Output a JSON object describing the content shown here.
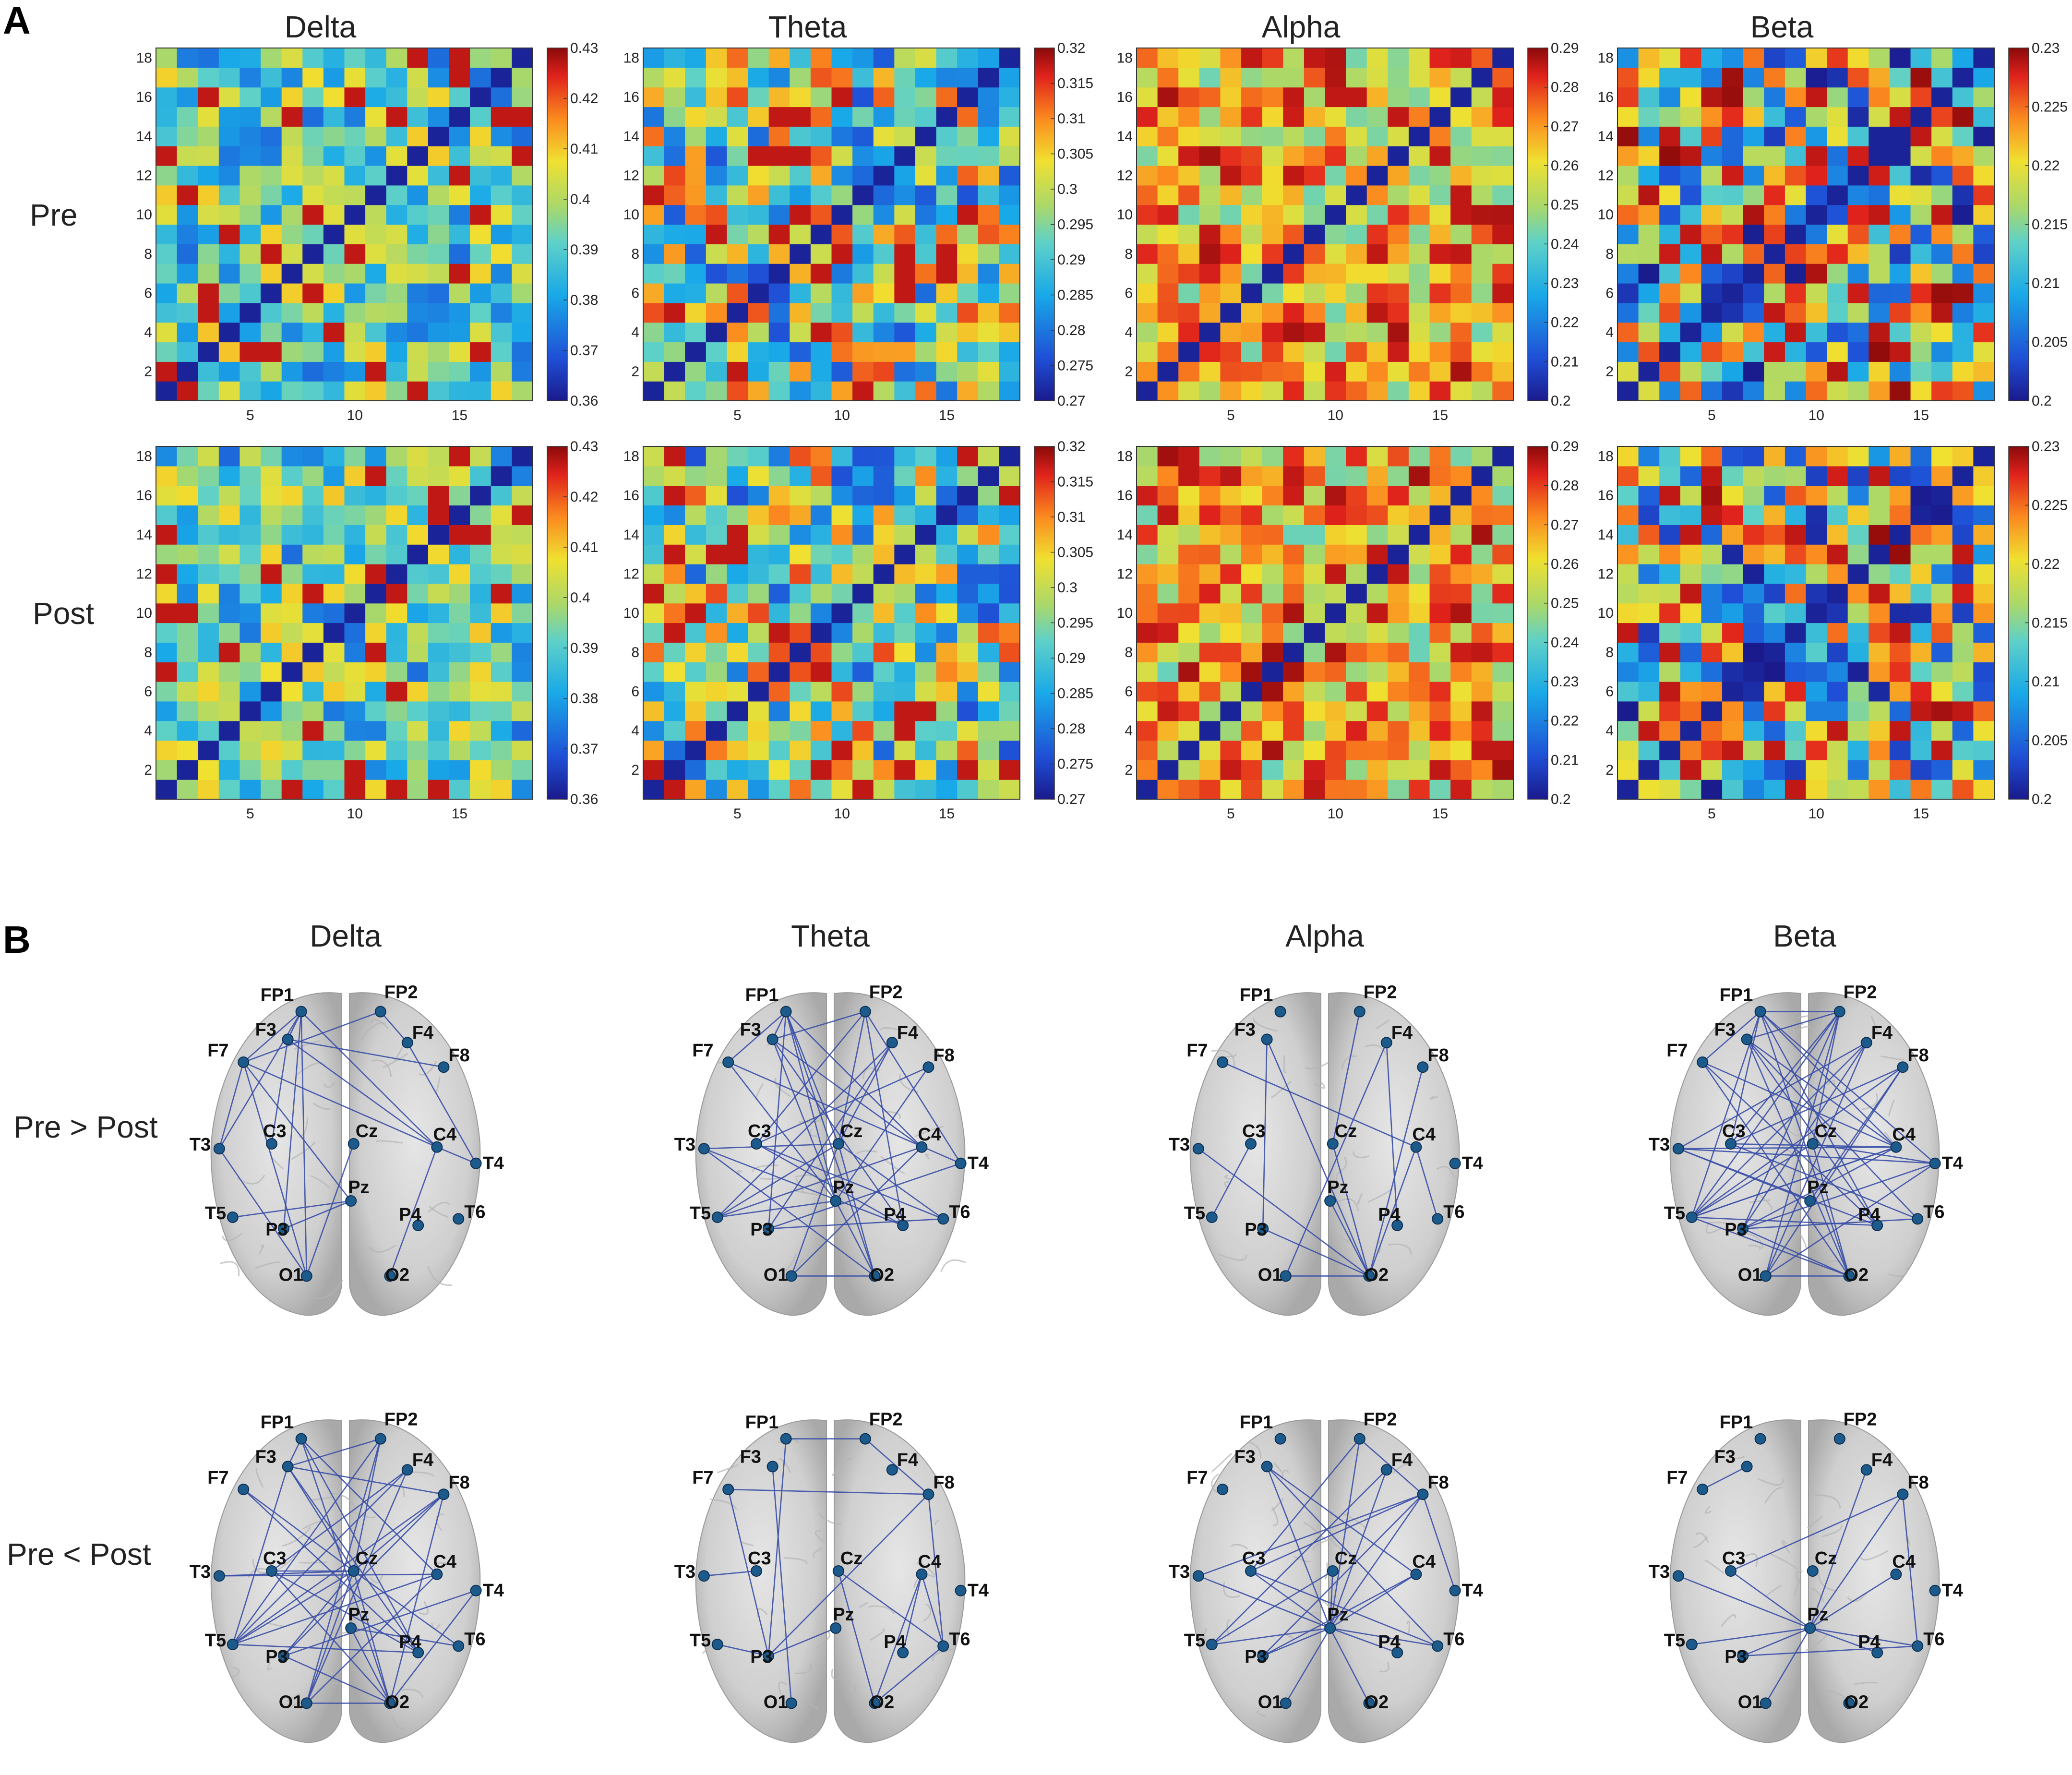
{
  "panel_a_label": "A",
  "panel_b_label": "B",
  "bands": [
    "Delta",
    "Theta",
    "Alpha",
    "Beta"
  ],
  "rows_a": [
    "Pre",
    "Post"
  ],
  "rows_b": [
    "Pre > Post",
    "Pre < Post"
  ],
  "matrix_size": 18,
  "y_ticks": [
    "2",
    "4",
    "6",
    "8",
    "10",
    "12",
    "14",
    "16",
    "18"
  ],
  "x_ticks": [
    "5",
    "10",
    "15"
  ],
  "colorbars": [
    {
      "band": "Delta",
      "ticks": [
        "0.43",
        "0.42",
        "0.41",
        "0.4",
        "0.39",
        "0.38",
        "0.37",
        "0.36"
      ]
    },
    {
      "band": "Theta",
      "ticks": [
        "0.32",
        "0.315",
        "0.31",
        "0.305",
        "0.3",
        "0.295",
        "0.29",
        "0.285",
        "0.28",
        "0.275",
        "0.27"
      ]
    },
    {
      "band": "Alpha",
      "ticks": [
        "0.29",
        "0.28",
        "0.27",
        "0.26",
        "0.25",
        "0.24",
        "0.23",
        "0.22",
        "0.21",
        "0.2"
      ]
    },
    {
      "band": "Beta",
      "ticks": [
        "0.23",
        "0.225",
        "0.22",
        "0.215",
        "0.21",
        "0.205",
        "0.2"
      ]
    }
  ],
  "colormap": "jet",
  "colors": {
    "edge": "#3a4fa8",
    "node": "#1d5a8c",
    "brain": "#c9c9c9"
  },
  "electrodes": [
    "FP1",
    "FP2",
    "F3",
    "F4",
    "F7",
    "F8",
    "T3",
    "C3",
    "Cz",
    "C4",
    "T4",
    "T5",
    "P3",
    "Pz",
    "P4",
    "T6",
    "O1",
    "O2"
  ],
  "chart_data": [
    {
      "type": "heatmap",
      "band": "Delta",
      "condition": "Pre",
      "diagonal_value": 0.36,
      "range": [
        0.36,
        0.43
      ],
      "size": 18
    },
    {
      "type": "heatmap",
      "band": "Theta",
      "condition": "Pre",
      "diagonal_value": 0.27,
      "range": [
        0.27,
        0.32
      ],
      "size": 18
    },
    {
      "type": "heatmap",
      "band": "Alpha",
      "condition": "Pre",
      "diagonal_value": 0.2,
      "range": [
        0.2,
        0.295
      ],
      "size": 18
    },
    {
      "type": "heatmap",
      "band": "Beta",
      "condition": "Pre",
      "diagonal_value": 0.2,
      "range": [
        0.2,
        0.23
      ],
      "size": 18
    },
    {
      "type": "heatmap",
      "band": "Delta",
      "condition": "Post",
      "diagonal_value": 0.36,
      "range": [
        0.36,
        0.43
      ],
      "size": 18
    },
    {
      "type": "heatmap",
      "band": "Theta",
      "condition": "Post",
      "diagonal_value": 0.27,
      "range": [
        0.27,
        0.32
      ],
      "size": 18
    },
    {
      "type": "heatmap",
      "band": "Alpha",
      "condition": "Post",
      "diagonal_value": 0.2,
      "range": [
        0.2,
        0.295
      ],
      "size": 18
    },
    {
      "type": "heatmap",
      "band": "Beta",
      "condition": "Post",
      "diagonal_value": 0.2,
      "range": [
        0.2,
        0.23
      ],
      "size": 18
    }
  ],
  "networks": [
    {
      "band": "Delta",
      "row": "Pre > Post",
      "edges": [
        [
          "FP1",
          "F7"
        ],
        [
          "FP1",
          "T3"
        ],
        [
          "FP1",
          "P3"
        ],
        [
          "FP1",
          "C4"
        ],
        [
          "FP1",
          "F3"
        ],
        [
          "FP2",
          "F4"
        ],
        [
          "FP2",
          "F7"
        ],
        [
          "F3",
          "C4"
        ],
        [
          "F7",
          "C4"
        ],
        [
          "F7",
          "Pz"
        ],
        [
          "F7",
          "T3"
        ],
        [
          "F3",
          "F8"
        ],
        [
          "T3",
          "O1"
        ],
        [
          "C3",
          "F3"
        ],
        [
          "Cz",
          "O1"
        ],
        [
          "C4",
          "T4"
        ],
        [
          "C4",
          "O2"
        ],
        [
          "Pz",
          "P3"
        ],
        [
          "Pz",
          "T5"
        ],
        [
          "F4",
          "T4"
        ],
        [
          "FP1",
          "O1"
        ],
        [
          "F7",
          "O1"
        ]
      ]
    },
    {
      "band": "Theta",
      "row": "Pre > Post",
      "edges": [
        [
          "FP1",
          "F3"
        ],
        [
          "FP1",
          "F7"
        ],
        [
          "FP1",
          "Cz"
        ],
        [
          "FP1",
          "C4"
        ],
        [
          "FP1",
          "Pz"
        ],
        [
          "FP1",
          "P3"
        ],
        [
          "FP2",
          "F3"
        ],
        [
          "FP2",
          "Cz"
        ],
        [
          "FP2",
          "C3"
        ],
        [
          "FP2",
          "P4"
        ],
        [
          "FP2",
          "T4"
        ],
        [
          "F3",
          "Pz"
        ],
        [
          "F3",
          "C4"
        ],
        [
          "F4",
          "P3"
        ],
        [
          "F4",
          "Cz"
        ],
        [
          "F7",
          "Pz"
        ],
        [
          "F7",
          "T4"
        ],
        [
          "F8",
          "Pz"
        ],
        [
          "F8",
          "C3"
        ],
        [
          "T3",
          "Cz"
        ],
        [
          "T3",
          "P4"
        ],
        [
          "T3",
          "O2"
        ],
        [
          "C3",
          "T6"
        ],
        [
          "C3",
          "P4"
        ],
        [
          "Cz",
          "T5"
        ],
        [
          "Cz",
          "O1"
        ],
        [
          "Cz",
          "O2"
        ],
        [
          "Cz",
          "T6"
        ],
        [
          "C4",
          "T5"
        ],
        [
          "C4",
          "O1"
        ],
        [
          "T4",
          "P3"
        ],
        [
          "T5",
          "Pz"
        ],
        [
          "Pz",
          "O2"
        ],
        [
          "P3",
          "T6"
        ],
        [
          "O1",
          "O2"
        ],
        [
          "F3",
          "P4"
        ],
        [
          "F4",
          "T5"
        ],
        [
          "FP1",
          "O2"
        ]
      ]
    },
    {
      "band": "Alpha",
      "row": "Pre > Post",
      "edges": [
        [
          "F3",
          "P3"
        ],
        [
          "F3",
          "O2"
        ],
        [
          "F7",
          "C4"
        ],
        [
          "FP2",
          "Cz"
        ],
        [
          "F4",
          "O1"
        ],
        [
          "F4",
          "P4"
        ],
        [
          "C3",
          "T5"
        ],
        [
          "T3",
          "O2"
        ],
        [
          "Cz",
          "O2"
        ],
        [
          "C4",
          "O2"
        ],
        [
          "C4",
          "T6"
        ],
        [
          "Pz",
          "O2"
        ],
        [
          "O1",
          "O2"
        ],
        [
          "P3",
          "O2"
        ],
        [
          "F8",
          "O2"
        ]
      ]
    },
    {
      "band": "Beta",
      "row": "Pre > Post",
      "edges": [
        [
          "FP1",
          "FP2"
        ],
        [
          "FP1",
          "F7"
        ],
        [
          "FP1",
          "C3"
        ],
        [
          "FP1",
          "T5"
        ],
        [
          "FP1",
          "P4"
        ],
        [
          "FP1",
          "C4"
        ],
        [
          "FP1",
          "T4"
        ],
        [
          "FP1",
          "O2"
        ],
        [
          "FP2",
          "F3"
        ],
        [
          "FP2",
          "C3"
        ],
        [
          "FP2",
          "T5"
        ],
        [
          "FP2",
          "P3"
        ],
        [
          "FP2",
          "Cz"
        ],
        [
          "FP2",
          "O1"
        ],
        [
          "F3",
          "P4"
        ],
        [
          "F3",
          "T6"
        ],
        [
          "F3",
          "C4"
        ],
        [
          "F3",
          "O2"
        ],
        [
          "F4",
          "T3"
        ],
        [
          "F4",
          "P3"
        ],
        [
          "F4",
          "T5"
        ],
        [
          "F4",
          "O1"
        ],
        [
          "F7",
          "P4"
        ],
        [
          "F7",
          "C4"
        ],
        [
          "F7",
          "O2"
        ],
        [
          "F8",
          "T5"
        ],
        [
          "F8",
          "C3"
        ],
        [
          "F8",
          "O1"
        ],
        [
          "T3",
          "C4"
        ],
        [
          "T3",
          "T4"
        ],
        [
          "T3",
          "P4"
        ],
        [
          "C3",
          "T6"
        ],
        [
          "C3",
          "C4"
        ],
        [
          "Cz",
          "T5"
        ],
        [
          "Cz",
          "O2"
        ],
        [
          "Cz",
          "T4"
        ],
        [
          "C4",
          "P3"
        ],
        [
          "C4",
          "T5"
        ],
        [
          "T4",
          "P3"
        ],
        [
          "T5",
          "P4"
        ],
        [
          "T5",
          "O2"
        ],
        [
          "P3",
          "O2"
        ],
        [
          "Pz",
          "T3"
        ],
        [
          "Pz",
          "F8"
        ],
        [
          "O1",
          "O2"
        ],
        [
          "O1",
          "T4"
        ],
        [
          "P3",
          "T6"
        ],
        [
          "T5",
          "C4"
        ]
      ]
    },
    {
      "band": "Delta",
      "row": "Pre < Post",
      "edges": [
        [
          "FP1",
          "F3"
        ],
        [
          "FP1",
          "C4"
        ],
        [
          "FP1",
          "O2"
        ],
        [
          "FP1",
          "P4"
        ],
        [
          "FP2",
          "F3"
        ],
        [
          "FP2",
          "Cz"
        ],
        [
          "FP2",
          "T5"
        ],
        [
          "FP2",
          "O1"
        ],
        [
          "F3",
          "Cz"
        ],
        [
          "F3",
          "P4"
        ],
        [
          "F3",
          "F8"
        ],
        [
          "F4",
          "C3"
        ],
        [
          "F4",
          "T5"
        ],
        [
          "F4",
          "O1"
        ],
        [
          "F7",
          "Cz"
        ],
        [
          "F7",
          "P4"
        ],
        [
          "F8",
          "Cz"
        ],
        [
          "F8",
          "T5"
        ],
        [
          "F8",
          "P3"
        ],
        [
          "F8",
          "O2"
        ],
        [
          "T3",
          "C4"
        ],
        [
          "T3",
          "Cz"
        ],
        [
          "C3",
          "O2"
        ],
        [
          "C3",
          "P4"
        ],
        [
          "C3",
          "Cz"
        ],
        [
          "Cz",
          "T5"
        ],
        [
          "Cz",
          "O1"
        ],
        [
          "Cz",
          "O2"
        ],
        [
          "Cz",
          "T6"
        ],
        [
          "Cz",
          "P3"
        ],
        [
          "C4",
          "T5"
        ],
        [
          "C4",
          "O1"
        ],
        [
          "T4",
          "P3"
        ],
        [
          "T4",
          "O2"
        ],
        [
          "T5",
          "P4"
        ],
        [
          "Pz",
          "T6"
        ],
        [
          "Pz",
          "O2"
        ],
        [
          "O1",
          "O2"
        ],
        [
          "P3",
          "O2"
        ],
        [
          "F3",
          "T5"
        ]
      ]
    },
    {
      "band": "Theta",
      "row": "Pre < Post",
      "edges": [
        [
          "FP1",
          "FP2"
        ],
        [
          "FP1",
          "P3"
        ],
        [
          "FP2",
          "F8"
        ],
        [
          "F7",
          "F8"
        ],
        [
          "F7",
          "P3"
        ],
        [
          "F8",
          "P3"
        ],
        [
          "F8",
          "T6"
        ],
        [
          "F3",
          "O1"
        ],
        [
          "C3",
          "T3"
        ],
        [
          "C4",
          "P4"
        ],
        [
          "C4",
          "O2"
        ],
        [
          "C4",
          "T6"
        ],
        [
          "Cz",
          "T6"
        ],
        [
          "Pz",
          "P3"
        ],
        [
          "T5",
          "P3"
        ],
        [
          "T6",
          "O2"
        ],
        [
          "Cz",
          "O2"
        ]
      ]
    },
    {
      "band": "Alpha",
      "row": "Pre < Post",
      "edges": [
        [
          "F3",
          "Pz"
        ],
        [
          "F3",
          "C4"
        ],
        [
          "F3",
          "T6"
        ],
        [
          "FP2",
          "Pz"
        ],
        [
          "FP2",
          "F8"
        ],
        [
          "FP2",
          "C3"
        ],
        [
          "F4",
          "Pz"
        ],
        [
          "F4",
          "T5"
        ],
        [
          "F8",
          "T3"
        ],
        [
          "F8",
          "Pz"
        ],
        [
          "F8",
          "T4"
        ],
        [
          "F8",
          "P3"
        ],
        [
          "T3",
          "Pz"
        ],
        [
          "C3",
          "Pz"
        ],
        [
          "C3",
          "T6"
        ],
        [
          "Cz",
          "Pz"
        ],
        [
          "Cz",
          "T5"
        ],
        [
          "C4",
          "Pz"
        ],
        [
          "C4",
          "P3"
        ],
        [
          "T5",
          "Pz"
        ],
        [
          "P3",
          "Pz"
        ],
        [
          "Pz",
          "P4"
        ],
        [
          "Pz",
          "T6"
        ],
        [
          "Pz",
          "O1"
        ],
        [
          "Pz",
          "O2"
        ],
        [
          "C3",
          "F8"
        ]
      ]
    },
    {
      "band": "Beta",
      "row": "Pre < Post",
      "edges": [
        [
          "F8",
          "Pz"
        ],
        [
          "F8",
          "T6"
        ],
        [
          "F4",
          "Pz"
        ],
        [
          "C3",
          "F8"
        ],
        [
          "C3",
          "Pz"
        ],
        [
          "T3",
          "Pz"
        ],
        [
          "T5",
          "Pz"
        ],
        [
          "P3",
          "Pz"
        ],
        [
          "Pz",
          "O1"
        ],
        [
          "Pz",
          "P4"
        ],
        [
          "Pz",
          "T6"
        ],
        [
          "C4",
          "Pz"
        ],
        [
          "F3",
          "F7"
        ],
        [
          "P3",
          "T6"
        ]
      ]
    }
  ]
}
